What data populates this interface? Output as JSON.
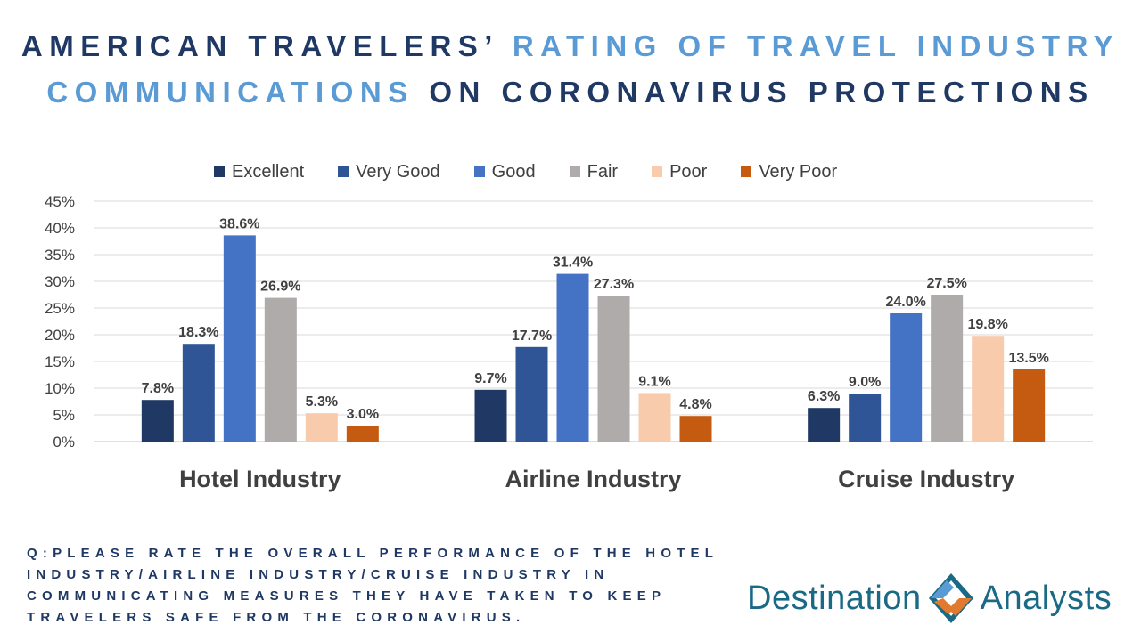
{
  "title": {
    "part1": "AMERICAN TRAVELERS’ ",
    "part2": "RATING OF TRAVEL INDUSTRY COMMUNICATIONS",
    "part3": " ON CORONAVIRUS PROTECTIONS"
  },
  "colors": {
    "title_dark": "#1f3864",
    "title_light": "#5b9bd5",
    "series": [
      "#1f3864",
      "#2f5597",
      "#4472c4",
      "#afabab",
      "#f8cbad",
      "#c55a11"
    ]
  },
  "chart_data": {
    "type": "bar",
    "title": "",
    "xlabel": "",
    "ylabel": "",
    "categories": [
      "Hotel Industry",
      "Airline Industry",
      "Cruise Industry"
    ],
    "series": [
      {
        "name": "Excellent",
        "values": [
          7.8,
          9.7,
          6.3
        ]
      },
      {
        "name": "Very Good",
        "values": [
          18.3,
          17.7,
          9.0
        ]
      },
      {
        "name": "Good",
        "values": [
          38.6,
          31.4,
          24.0
        ]
      },
      {
        "name": "Fair",
        "values": [
          26.9,
          27.3,
          27.5
        ]
      },
      {
        "name": "Poor",
        "values": [
          5.3,
          9.1,
          19.8
        ]
      },
      {
        "name": "Very Poor",
        "values": [
          3.0,
          4.8,
          13.5
        ]
      }
    ],
    "y_ticks": [
      "0%",
      "5%",
      "10%",
      "15%",
      "20%",
      "25%",
      "30%",
      "35%",
      "40%",
      "45%"
    ],
    "ylim": [
      0,
      45
    ],
    "value_format": "percent_1dp",
    "grid": true,
    "legend_position": "top"
  },
  "question": "Q:PLEASE RATE THE OVERALL PERFORMANCE OF THE HOTEL INDUSTRY/AIRLINE INDUSTRY/CRUISE INDUSTRY IN COMMUNICATING MEASURES THEY HAVE TAKEN TO KEEP TRAVELERS SAFE FROM THE CORONAVIRUS.",
  "logo": {
    "word1": "Destination",
    "word2": "Analysts",
    "icon": "diamond-arrows-icon"
  }
}
